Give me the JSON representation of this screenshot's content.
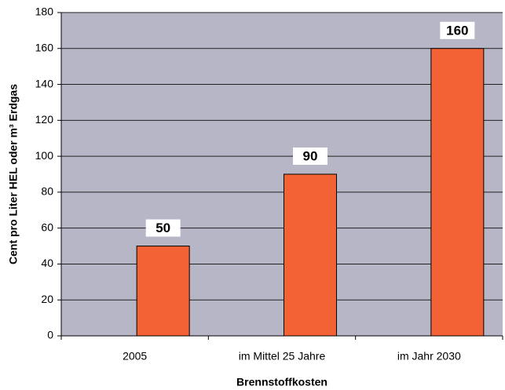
{
  "chart_data": {
    "type": "bar",
    "categories": [
      "2005",
      "im Mittel 25 Jahre",
      "im Jahr 2030"
    ],
    "values": [
      50,
      90,
      160
    ],
    "color": "#f26234",
    "y_label": "Cent pro Liter HEL oder m³ Erdgas",
    "x_label": "Brennstoffkosten",
    "ylim": [
      0,
      180
    ],
    "yticks": [
      0,
      20,
      40,
      60,
      80,
      100,
      120,
      140,
      160,
      180
    ],
    "grid": true
  }
}
